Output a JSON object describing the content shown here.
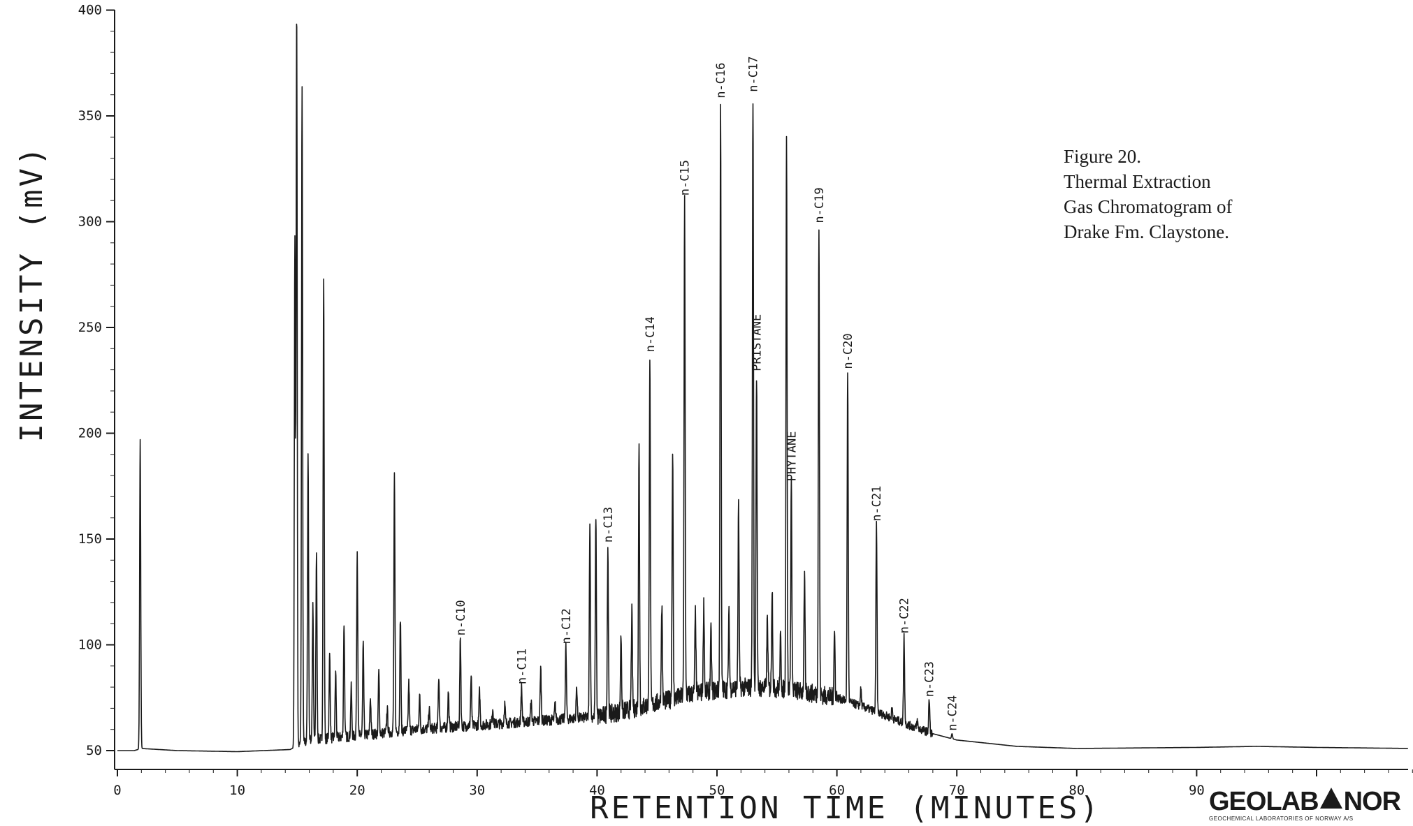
{
  "chart_data": {
    "type": "line",
    "title": "",
    "xlabel": "RETENTION TIME (MINUTES)",
    "ylabel": "INTENSITY (mV)",
    "xlim": [
      0,
      108
    ],
    "ylim": [
      50,
      400
    ],
    "x_ticks": [
      "0",
      "10",
      "20",
      "30",
      "40",
      "50",
      "60",
      "70",
      "80",
      "90"
    ],
    "y_ticks": [
      "50",
      "100",
      "150",
      "200",
      "250",
      "300",
      "350",
      "400"
    ],
    "grid": false,
    "baseline": [
      [
        0,
        50
      ],
      [
        1.4,
        50
      ],
      [
        2.0,
        51
      ],
      [
        5,
        50
      ],
      [
        10,
        49.5
      ],
      [
        14.4,
        50.5
      ],
      [
        16,
        55
      ],
      [
        20,
        57
      ],
      [
        25,
        60
      ],
      [
        30,
        62
      ],
      [
        35,
        64
      ],
      [
        40,
        66
      ],
      [
        44,
        71
      ],
      [
        48,
        77
      ],
      [
        52,
        80
      ],
      [
        56,
        79
      ],
      [
        60,
        75
      ],
      [
        63,
        69
      ],
      [
        66,
        62
      ],
      [
        68,
        58
      ],
      [
        70,
        55
      ],
      [
        75,
        52
      ],
      [
        80,
        51
      ],
      [
        90,
        51.5
      ],
      [
        95,
        52
      ],
      [
        100,
        51.5
      ],
      [
        108,
        51
      ]
    ],
    "peaks": [
      {
        "rt": 1.9,
        "height": 197,
        "label": ""
      },
      {
        "rt": 14.8,
        "height": 292,
        "label": ""
      },
      {
        "rt": 14.95,
        "height": 400,
        "label": ""
      },
      {
        "rt": 15.4,
        "height": 364,
        "label": ""
      },
      {
        "rt": 15.9,
        "height": 190,
        "label": ""
      },
      {
        "rt": 16.3,
        "height": 118,
        "label": ""
      },
      {
        "rt": 16.6,
        "height": 144,
        "label": ""
      },
      {
        "rt": 17.2,
        "height": 273,
        "label": ""
      },
      {
        "rt": 17.7,
        "height": 95,
        "label": ""
      },
      {
        "rt": 18.2,
        "height": 87,
        "label": ""
      },
      {
        "rt": 18.9,
        "height": 110,
        "label": ""
      },
      {
        "rt": 19.5,
        "height": 80,
        "label": ""
      },
      {
        "rt": 20.0,
        "height": 145,
        "label": ""
      },
      {
        "rt": 20.5,
        "height": 100,
        "label": ""
      },
      {
        "rt": 21.1,
        "height": 75,
        "label": ""
      },
      {
        "rt": 21.8,
        "height": 87,
        "label": ""
      },
      {
        "rt": 22.5,
        "height": 70,
        "label": ""
      },
      {
        "rt": 23.1,
        "height": 180,
        "label": ""
      },
      {
        "rt": 23.6,
        "height": 113,
        "label": ""
      },
      {
        "rt": 24.3,
        "height": 82,
        "label": ""
      },
      {
        "rt": 25.2,
        "height": 76,
        "label": ""
      },
      {
        "rt": 26.0,
        "height": 70,
        "label": ""
      },
      {
        "rt": 26.8,
        "height": 85,
        "label": ""
      },
      {
        "rt": 27.6,
        "height": 78,
        "label": ""
      },
      {
        "rt": 28.6,
        "height": 103,
        "label": "n-C10"
      },
      {
        "rt": 29.5,
        "height": 85,
        "label": ""
      },
      {
        "rt": 30.2,
        "height": 78,
        "label": ""
      },
      {
        "rt": 31.3,
        "height": 70,
        "label": ""
      },
      {
        "rt": 32.3,
        "height": 72,
        "label": ""
      },
      {
        "rt": 33.7,
        "height": 80,
        "label": "n-C11"
      },
      {
        "rt": 34.5,
        "height": 73,
        "label": ""
      },
      {
        "rt": 35.3,
        "height": 89,
        "label": ""
      },
      {
        "rt": 36.5,
        "height": 72,
        "label": ""
      },
      {
        "rt": 37.4,
        "height": 99,
        "label": "n-C12"
      },
      {
        "rt": 38.3,
        "height": 80,
        "label": ""
      },
      {
        "rt": 39.4,
        "height": 159,
        "label": ""
      },
      {
        "rt": 39.9,
        "height": 161,
        "label": ""
      },
      {
        "rt": 40.9,
        "height": 147,
        "label": "n-C13"
      },
      {
        "rt": 42.0,
        "height": 105,
        "label": ""
      },
      {
        "rt": 42.9,
        "height": 115,
        "label": ""
      },
      {
        "rt": 43.5,
        "height": 193,
        "label": ""
      },
      {
        "rt": 44.4,
        "height": 237,
        "label": "n-C14"
      },
      {
        "rt": 45.4,
        "height": 120,
        "label": ""
      },
      {
        "rt": 46.3,
        "height": 191,
        "label": ""
      },
      {
        "rt": 47.3,
        "height": 311,
        "label": "n-C15"
      },
      {
        "rt": 48.2,
        "height": 115,
        "label": ""
      },
      {
        "rt": 48.9,
        "height": 119,
        "label": ""
      },
      {
        "rt": 49.5,
        "height": 106,
        "label": ""
      },
      {
        "rt": 50.3,
        "height": 357,
        "label": "n-C16"
      },
      {
        "rt": 51.0,
        "height": 114,
        "label": ""
      },
      {
        "rt": 51.8,
        "height": 165,
        "label": ""
      },
      {
        "rt": 53.0,
        "height": 360,
        "label": "n-C17"
      },
      {
        "rt": 53.3,
        "height": 228,
        "label": "PRISTANE"
      },
      {
        "rt": 54.2,
        "height": 112,
        "label": ""
      },
      {
        "rt": 54.6,
        "height": 127,
        "label": ""
      },
      {
        "rt": 55.3,
        "height": 103,
        "label": ""
      },
      {
        "rt": 55.8,
        "height": 341,
        "label": ""
      },
      {
        "rt": 56.2,
        "height": 176,
        "label": "PHYTANE"
      },
      {
        "rt": 57.3,
        "height": 131,
        "label": ""
      },
      {
        "rt": 58.5,
        "height": 298,
        "label": "n-C19"
      },
      {
        "rt": 59.8,
        "height": 106,
        "label": ""
      },
      {
        "rt": 60.9,
        "height": 229,
        "label": "n-C20"
      },
      {
        "rt": 62.0,
        "height": 79,
        "label": ""
      },
      {
        "rt": 63.3,
        "height": 157,
        "label": "n-C21"
      },
      {
        "rt": 64.6,
        "height": 70,
        "label": ""
      },
      {
        "rt": 65.6,
        "height": 104,
        "label": "n-C22"
      },
      {
        "rt": 66.7,
        "height": 64,
        "label": ""
      },
      {
        "rt": 67.7,
        "height": 74,
        "label": "n-C23"
      },
      {
        "rt": 69.6,
        "height": 58,
        "label": "n-C24"
      }
    ],
    "annotations": [
      "Figure 20.",
      "Thermal Extraction",
      "Gas Chromatogram of",
      "Drake Fm. Claystone."
    ]
  },
  "logo": {
    "left_text": "GEOLAB",
    "right_text": "NOR",
    "subtitle": "GEOCHEMICAL LABORATORIES OF NORWAY A/S"
  }
}
